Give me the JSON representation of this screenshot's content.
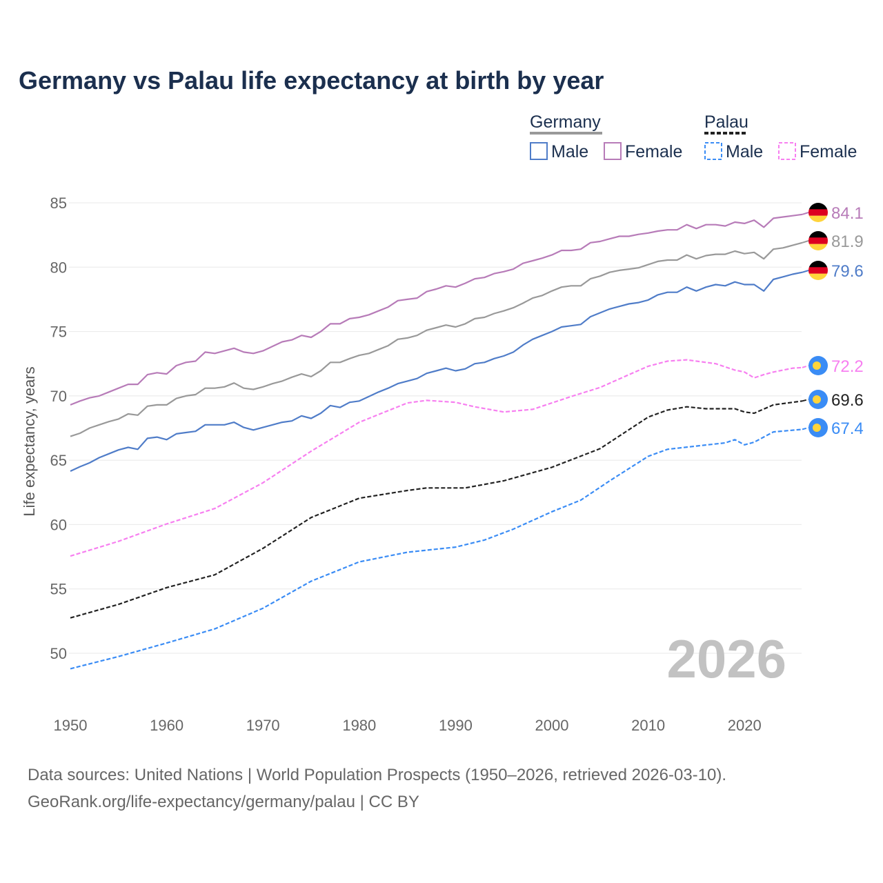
{
  "chart_data": {
    "type": "line",
    "title": "Germany vs Palau life expectancy at birth by year",
    "xlabel": "",
    "ylabel": "Life expectancy, years",
    "xlim": [
      1950,
      2026
    ],
    "ylim": [
      47.5,
      86
    ],
    "x_ticks": [
      1950,
      1960,
      1970,
      1980,
      1990,
      2000,
      2010,
      2020
    ],
    "x_tick_labels": [
      "1950",
      "1960",
      "1970",
      "1980",
      "1990",
      "2000",
      "2010",
      "2020"
    ],
    "y_ticks": [
      50,
      55,
      60,
      65,
      70,
      75,
      80,
      85
    ],
    "y_tick_labels": [
      "50",
      "55",
      "60",
      "65",
      "70",
      "75",
      "80",
      "85"
    ],
    "grid": true,
    "year_watermark": "2026",
    "legend": {
      "placement": "top-right",
      "groups": [
        {
          "label": "Germany",
          "style": "solid",
          "items": [
            "Male",
            "Female"
          ]
        },
        {
          "label": "Palau",
          "style": "dashed",
          "items": [
            "Male",
            "Female"
          ]
        }
      ]
    },
    "series": [
      {
        "name": "Germany Female",
        "country": "Germany",
        "color": "#b77bb8",
        "dashed": false,
        "end_label": "84.1",
        "start_year": 1950,
        "values": [
          69.3,
          69.6,
          69.85,
          70.0,
          70.3,
          70.6,
          70.9,
          70.9,
          71.65,
          71.8,
          71.7,
          72.35,
          72.6,
          72.7,
          73.4,
          73.3,
          73.5,
          73.7,
          73.4,
          73.3,
          73.5,
          73.85,
          74.2,
          74.35,
          74.7,
          74.55,
          75.0,
          75.6,
          75.6,
          76.0,
          76.1,
          76.3,
          76.6,
          76.9,
          77.4,
          77.5,
          77.6,
          78.1,
          78.3,
          78.55,
          78.45,
          78.75,
          79.1,
          79.2,
          79.5,
          79.65,
          79.85,
          80.3,
          80.5,
          80.7,
          80.95,
          81.3,
          81.3,
          81.4,
          81.9,
          82.0,
          82.2,
          82.4,
          82.4,
          82.55,
          82.65,
          82.8,
          82.9,
          82.9,
          83.3,
          83.0,
          83.3,
          83.3,
          83.2,
          83.5,
          83.4,
          83.65,
          83.1,
          83.8,
          83.9,
          84.0,
          84.1
        ]
      },
      {
        "name": "Germany Total",
        "country": "Germany",
        "color": "#999999",
        "dashed": false,
        "end_label": "81.9",
        "start_year": 1950,
        "values": [
          66.85,
          67.1,
          67.5,
          67.75,
          68.0,
          68.2,
          68.6,
          68.5,
          69.2,
          69.3,
          69.3,
          69.8,
          70.0,
          70.1,
          70.6,
          70.6,
          70.7,
          71.0,
          70.6,
          70.5,
          70.7,
          70.95,
          71.15,
          71.45,
          71.7,
          71.5,
          71.95,
          72.6,
          72.6,
          72.9,
          73.15,
          73.3,
          73.6,
          73.9,
          74.4,
          74.5,
          74.7,
          75.1,
          75.3,
          75.5,
          75.35,
          75.6,
          76.0,
          76.1,
          76.4,
          76.6,
          76.85,
          77.2,
          77.6,
          77.8,
          78.15,
          78.45,
          78.55,
          78.55,
          79.1,
          79.3,
          79.6,
          79.75,
          79.85,
          79.95,
          80.2,
          80.45,
          80.55,
          80.55,
          80.95,
          80.65,
          80.9,
          81.0,
          81.0,
          81.25,
          81.05,
          81.15,
          80.65,
          81.4,
          81.5,
          81.7,
          81.9
        ]
      },
      {
        "name": "Germany Male",
        "country": "Germany",
        "color": "#4f7cc8",
        "dashed": false,
        "end_label": "79.6",
        "start_year": 1950,
        "values": [
          64.15,
          64.5,
          64.8,
          65.2,
          65.5,
          65.8,
          66.0,
          65.85,
          66.7,
          66.8,
          66.6,
          67.05,
          67.15,
          67.25,
          67.75,
          67.75,
          67.75,
          67.95,
          67.55,
          67.35,
          67.55,
          67.75,
          67.95,
          68.05,
          68.45,
          68.25,
          68.65,
          69.25,
          69.1,
          69.5,
          69.6,
          69.95,
          70.3,
          70.6,
          70.95,
          71.15,
          71.35,
          71.75,
          71.95,
          72.15,
          71.95,
          72.1,
          72.5,
          72.6,
          72.9,
          73.1,
          73.4,
          73.95,
          74.4,
          74.7,
          75.0,
          75.35,
          75.45,
          75.55,
          76.15,
          76.45,
          76.75,
          76.95,
          77.15,
          77.25,
          77.45,
          77.85,
          78.05,
          78.05,
          78.45,
          78.15,
          78.45,
          78.65,
          78.55,
          78.85,
          78.65,
          78.65,
          78.15,
          79.05,
          79.25,
          79.45,
          79.6
        ]
      },
      {
        "name": "Palau Female",
        "country": "Palau",
        "color": "#f77ff0",
        "dashed": true,
        "end_label": "72.2",
        "x": [
          1950,
          1955,
          1960,
          1965,
          1970,
          1975,
          1980,
          1985,
          1987,
          1990,
          1992,
          1995,
          1998,
          2000,
          2002,
          2005,
          2008,
          2010,
          2012,
          2014,
          2017,
          2019,
          2020,
          2021,
          2022,
          2023,
          2025,
          2026
        ],
        "y": [
          57.55,
          58.7,
          60.05,
          61.25,
          63.25,
          65.7,
          67.95,
          69.45,
          69.65,
          69.5,
          69.15,
          68.75,
          68.95,
          69.45,
          69.95,
          70.65,
          71.65,
          72.3,
          72.7,
          72.8,
          72.5,
          72.0,
          71.85,
          71.4,
          71.65,
          71.85,
          72.15,
          72.2
        ]
      },
      {
        "name": "Palau Total",
        "country": "Palau",
        "color": "#222222",
        "dashed": true,
        "end_label": "69.6",
        "x": [
          1950,
          1955,
          1960,
          1965,
          1970,
          1975,
          1980,
          1985,
          1987,
          1991,
          1995,
          2000,
          2005,
          2010,
          2012,
          2014,
          2016,
          2019,
          2020,
          2021,
          2023,
          2026
        ],
        "y": [
          52.75,
          53.8,
          55.1,
          56.1,
          58.15,
          60.55,
          62.05,
          62.65,
          62.85,
          62.85,
          63.4,
          64.45,
          65.9,
          68.35,
          68.9,
          69.15,
          69.0,
          69.0,
          68.75,
          68.65,
          69.3,
          69.6
        ]
      },
      {
        "name": "Palau Male",
        "country": "Palau",
        "color": "#3a8cf5",
        "dashed": true,
        "end_label": "67.4",
        "x": [
          1950,
          1955,
          1960,
          1965,
          1970,
          1975,
          1980,
          1985,
          1990,
          1993,
          1996,
          2000,
          2003,
          2006,
          2010,
          2012,
          2015,
          2018,
          2019,
          2020,
          2021,
          2023,
          2026
        ],
        "y": [
          48.8,
          49.75,
          50.8,
          51.9,
          53.5,
          55.6,
          57.1,
          57.85,
          58.25,
          58.8,
          59.65,
          61.0,
          61.9,
          63.4,
          65.3,
          65.85,
          66.1,
          66.35,
          66.6,
          66.2,
          66.4,
          67.2,
          67.4
        ]
      }
    ]
  },
  "source": {
    "line1": "Data sources: United Nations | World Population Prospects (1950–2026, retrieved 2026-03-10).",
    "line2": "GeoRank.org/life-expectancy/germany/palau | CC BY"
  }
}
